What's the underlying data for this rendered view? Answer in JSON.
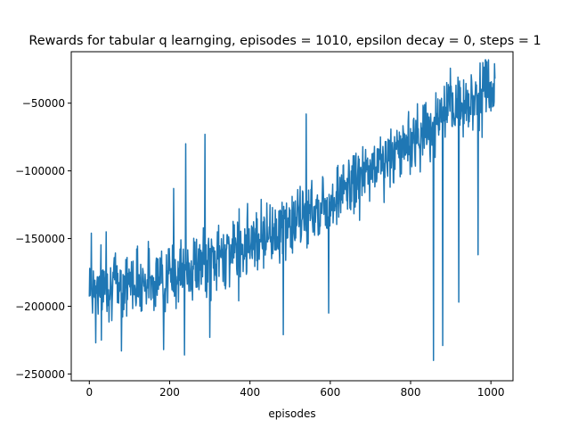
{
  "chart_data": {
    "type": "line",
    "title": "Rewards for tabular q learnging, episodes = 1010, epsilon decay = 0, steps = 1",
    "xlabel": "episodes",
    "ylabel": "",
    "xlim": [
      -45,
      1055
    ],
    "ylim": [
      -255000,
      -12000
    ],
    "x_ticks": [
      0,
      200,
      400,
      600,
      800,
      1000
    ],
    "x_tick_labels": [
      "0",
      "200",
      "400",
      "600",
      "800",
      "1000"
    ],
    "y_ticks": [
      -250000,
      -200000,
      -150000,
      -100000,
      -50000
    ],
    "y_tick_labels": [
      "−250000",
      "−200000",
      "−150000",
      "−100000",
      "−50000"
    ],
    "grid": false,
    "legend": "none",
    "series": [
      {
        "color": "#1f77b4",
        "trend": [
          [
            0,
            -185000
          ],
          [
            100,
            -182000
          ],
          [
            200,
            -178000
          ],
          [
            300,
            -168000
          ],
          [
            400,
            -150000
          ],
          [
            500,
            -140000
          ],
          [
            600,
            -122000
          ],
          [
            700,
            -100000
          ],
          [
            800,
            -78000
          ],
          [
            900,
            -55000
          ],
          [
            1000,
            -40000
          ],
          [
            1010,
            -38000
          ]
        ],
        "noise_amplitude": 22000,
        "spikes": [
          {
            "x": 1,
            "y": -172000
          },
          {
            "x": 5,
            "y": -146000
          },
          {
            "x": 8,
            "y": -205000
          },
          {
            "x": 16,
            "y": -227000
          },
          {
            "x": 30,
            "y": -225000
          },
          {
            "x": 42,
            "y": -145000
          },
          {
            "x": 80,
            "y": -233000
          },
          {
            "x": 185,
            "y": -232000
          },
          {
            "x": 210,
            "y": -113000
          },
          {
            "x": 237,
            "y": -236000
          },
          {
            "x": 240,
            "y": -80000
          },
          {
            "x": 288,
            "y": -73000
          },
          {
            "x": 300,
            "y": -223000
          },
          {
            "x": 372,
            "y": -196000
          },
          {
            "x": 483,
            "y": -221000
          },
          {
            "x": 540,
            "y": -58000
          },
          {
            "x": 596,
            "y": -205000
          },
          {
            "x": 725,
            "y": -75000
          },
          {
            "x": 857,
            "y": -240000
          },
          {
            "x": 880,
            "y": -229000
          },
          {
            "x": 920,
            "y": -197000
          },
          {
            "x": 968,
            "y": -162000
          },
          {
            "x": 980,
            "y": -20000
          },
          {
            "x": 1005,
            "y": -50000
          }
        ]
      }
    ]
  }
}
